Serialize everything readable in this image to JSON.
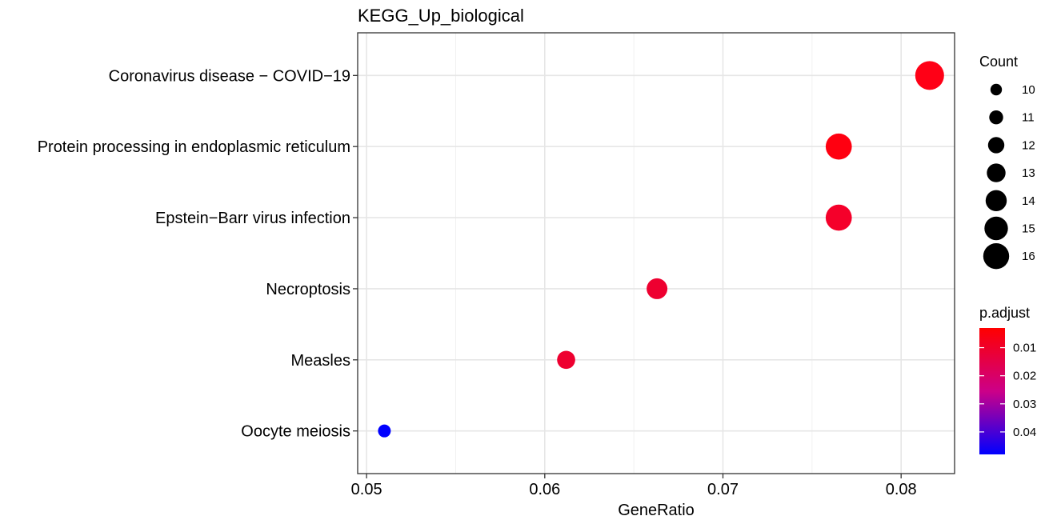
{
  "chart_data": {
    "type": "scatter",
    "title": "KEGG_Up_biological",
    "xlabel": "GeneRatio",
    "ylabel": "",
    "xlim": [
      0.0495,
      0.083
    ],
    "x_ticks": [
      0.05,
      0.06,
      0.07,
      0.08
    ],
    "x_tick_labels": [
      "0.05",
      "0.06",
      "0.07",
      "0.08"
    ],
    "grid": true,
    "categories": [
      "Coronavirus disease − COVID−19",
      "Protein processing in endoplasmic reticulum",
      "Epstein−Barr virus infection",
      "Necroptosis",
      "Measles",
      "Oocyte meiosis"
    ],
    "points": [
      {
        "category": "Coronavirus disease − COVID−19",
        "gene_ratio": 0.0816,
        "count": 16,
        "p_adjust": 0.003,
        "color": "#ff0016"
      },
      {
        "category": "Protein processing in endoplasmic reticulum",
        "gene_ratio": 0.0765,
        "count": 15,
        "p_adjust": 0.0035,
        "color": "#ff0010"
      },
      {
        "category": "Epstein−Barr virus infection",
        "gene_ratio": 0.0765,
        "count": 15,
        "p_adjust": 0.005,
        "color": "#f5002a"
      },
      {
        "category": "Necroptosis",
        "gene_ratio": 0.0663,
        "count": 13,
        "p_adjust": 0.006,
        "color": "#ee0030"
      },
      {
        "category": "Measles",
        "gene_ratio": 0.0612,
        "count": 12,
        "p_adjust": 0.006,
        "color": "#ee0030"
      },
      {
        "category": "Oocyte meiosis",
        "gene_ratio": 0.051,
        "count": 10,
        "p_adjust": 0.048,
        "color": "#0000ff"
      }
    ],
    "size_legend": {
      "title": "Count",
      "values": [
        10,
        11,
        12,
        13,
        14,
        15,
        16
      ],
      "labels": [
        "10",
        "11",
        "12",
        "13",
        "14",
        "15",
        "16"
      ]
    },
    "color_legend": {
      "title": "p.adjust",
      "range": [
        0.003,
        0.048
      ],
      "ticks": [
        0.01,
        0.02,
        0.03,
        0.04
      ],
      "tick_labels": [
        "0.01",
        "0.02",
        "0.03",
        "0.04"
      ],
      "low_color": "#ff0000",
      "high_color": "#0000ff"
    },
    "legend_position": "right"
  }
}
